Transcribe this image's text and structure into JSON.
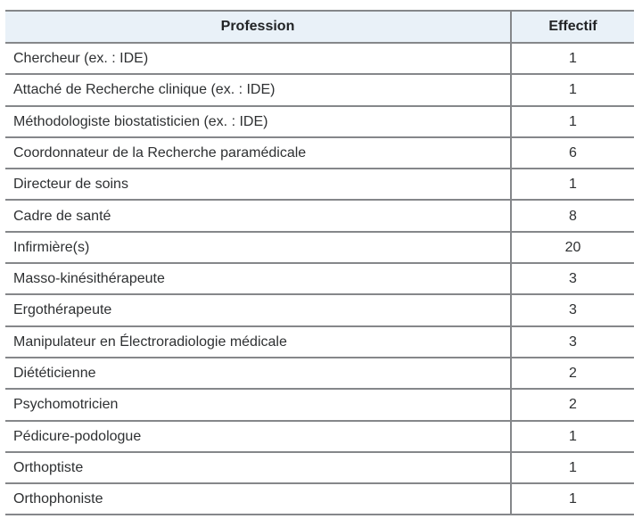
{
  "colors": {
    "header_bg": "#e9f1f8",
    "border": "#85878a",
    "text": "#2e3032",
    "header_text": "#222426",
    "page_bg": "#ffffff"
  },
  "chart_data": {
    "type": "table",
    "title": "",
    "headers": [
      "Profession",
      "Effectif"
    ],
    "rows": [
      [
        "Chercheur (ex. : IDE)",
        "1"
      ],
      [
        "Attaché de Recherche clinique (ex. : IDE)",
        "1"
      ],
      [
        "Méthodologiste biostatisticien (ex. : IDE)",
        "1"
      ],
      [
        "Coordonnateur de la Recherche paramédicale",
        "6"
      ],
      [
        "Directeur de soins",
        "1"
      ],
      [
        "Cadre de santé",
        "8"
      ],
      [
        "Infirmière(s)",
        "20"
      ],
      [
        "Masso-kinésithérapeute",
        "3"
      ],
      [
        "Ergothérapeute",
        "3"
      ],
      [
        "Manipulateur en Électroradiologie médicale",
        "3"
      ],
      [
        "Diététicienne",
        "2"
      ],
      [
        "Psychomotricien",
        "2"
      ],
      [
        "Pédicure-podologue",
        "1"
      ],
      [
        "Orthoptiste",
        "1"
      ],
      [
        "Orthophoniste",
        "1"
      ]
    ],
    "layout": {
      "grid": "horizontal-rules-with-single-column-divider",
      "header_alignment": "center",
      "profession_alignment": "left",
      "effectif_alignment": "center"
    }
  }
}
